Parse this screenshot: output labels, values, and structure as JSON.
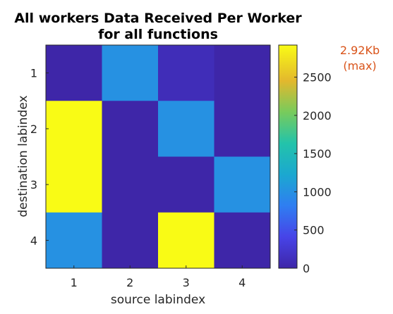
{
  "chart_data": {
    "type": "heatmap",
    "title": [
      "All workers Data Received Per Worker",
      "for all functions"
    ],
    "xlabel": "source labindex",
    "ylabel": "destination labindex",
    "x_categories": [
      "1",
      "2",
      "3",
      "4"
    ],
    "y_categories": [
      "1",
      "2",
      "3",
      "4"
    ],
    "matrix": [
      [
        0,
        1000,
        100,
        0
      ],
      [
        2920,
        0,
        1000,
        0
      ],
      [
        2920,
        0,
        0,
        1000
      ],
      [
        1000,
        0,
        2920,
        0
      ]
    ],
    "colormap": "parula",
    "colorbar": {
      "range": [
        0,
        2920
      ],
      "ticks": [
        0,
        500,
        1000,
        1500,
        2000,
        2500
      ],
      "tick_labels": [
        "0",
        "500",
        "1000",
        "1500",
        "2000",
        "2500"
      ]
    },
    "max_annotation": [
      "2.92Kb",
      "(max)"
    ],
    "max_annotation_color": "#d95319"
  }
}
